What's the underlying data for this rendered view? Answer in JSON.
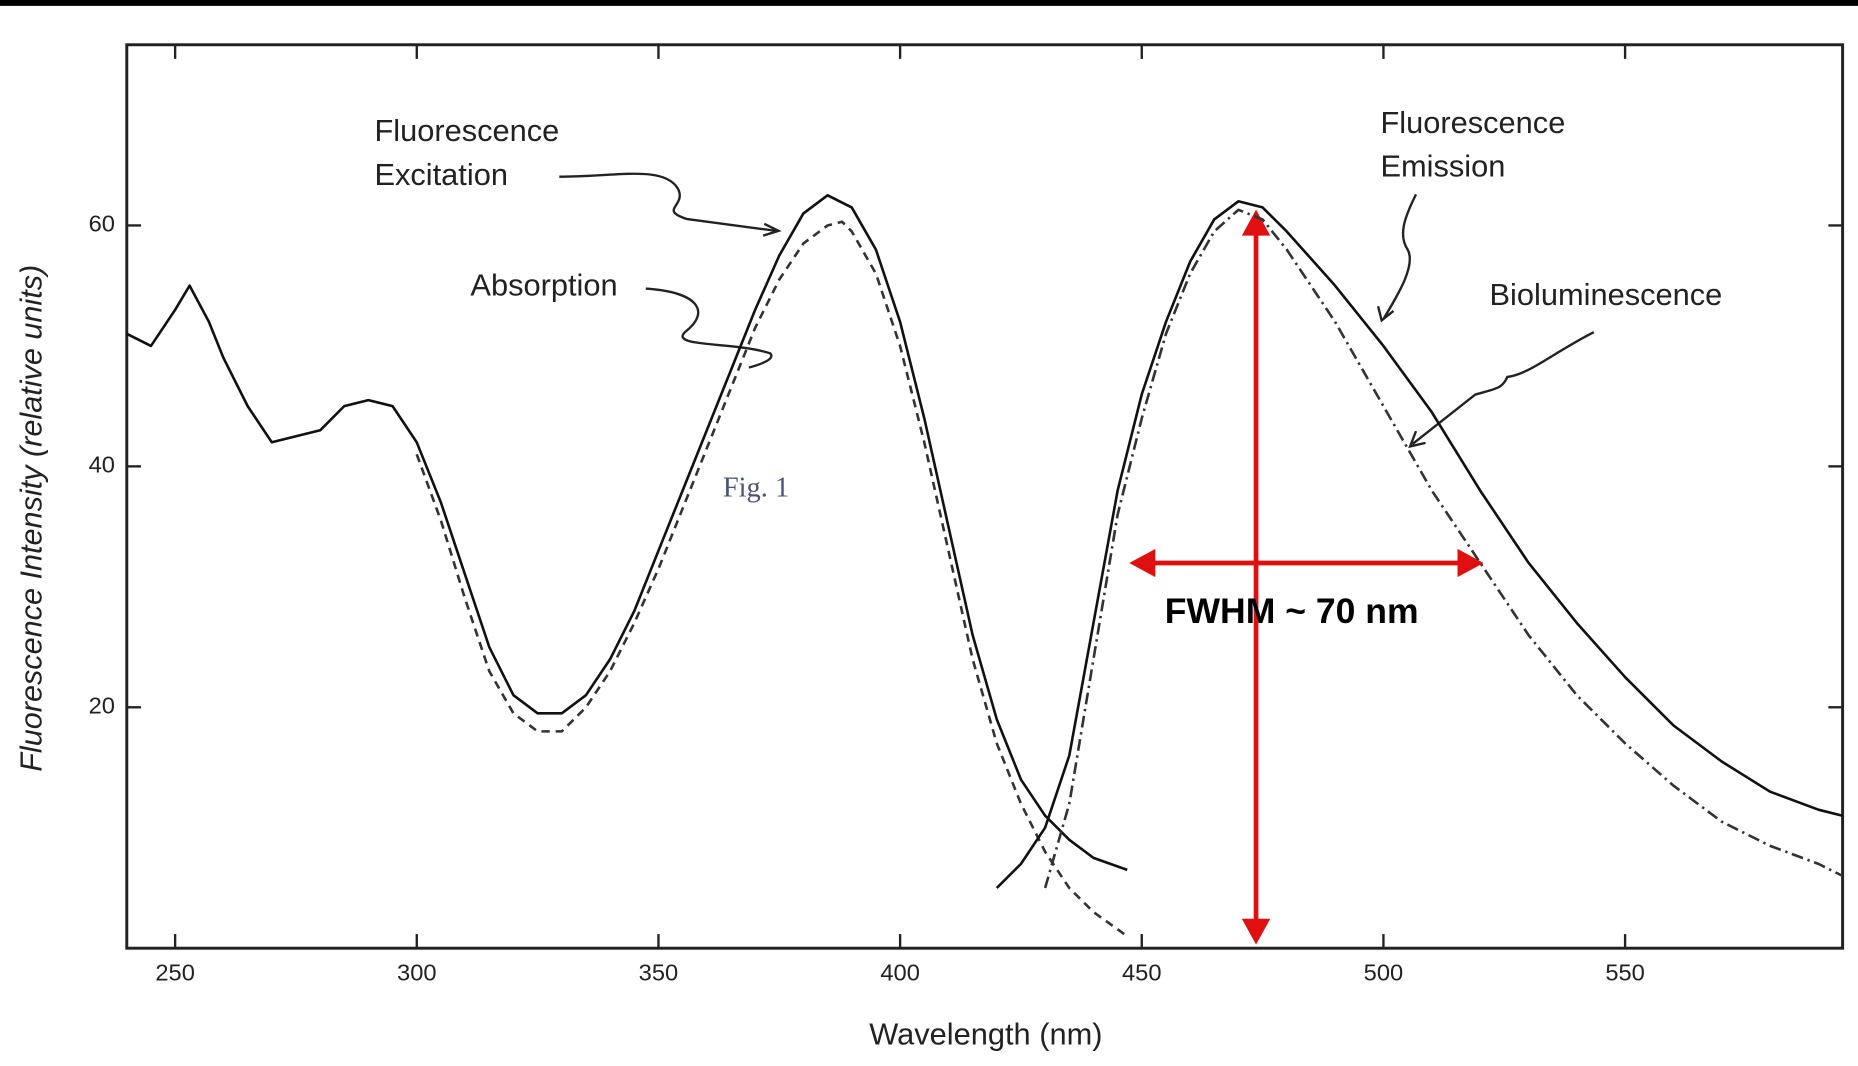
{
  "chart_data": {
    "type": "line",
    "xlabel": "Wavelength (nm)",
    "ylabel": "Fluorescence Intensity (relative units)",
    "xlim": [
      240,
      595
    ],
    "ylim": [
      0,
      75
    ],
    "xticks": [
      250,
      300,
      350,
      400,
      450,
      500,
      550
    ],
    "yticks": [
      20,
      40,
      60
    ],
    "series": [
      {
        "name": "Fluorescence Excitation",
        "color": "#111111",
        "dash": "none",
        "x": [
          240,
          245,
          250,
          253,
          257,
          260,
          265,
          270,
          275,
          280,
          285,
          290,
          295,
          300,
          305,
          310,
          315,
          320,
          325,
          330,
          335,
          340,
          345,
          350,
          355,
          360,
          365,
          370,
          375,
          380,
          385,
          390,
          395,
          400,
          405,
          410,
          415,
          420,
          425,
          430,
          435,
          440,
          447
        ],
        "values": [
          51,
          50,
          53,
          55,
          52,
          49,
          45,
          42,
          42.5,
          43,
          45,
          45.5,
          45,
          42,
          37,
          31,
          25,
          21,
          19.5,
          19.5,
          21,
          24,
          28,
          33,
          38,
          43,
          48,
          53,
          57.5,
          61,
          62.5,
          61.5,
          58,
          52,
          44,
          35,
          26,
          19,
          14,
          11,
          9,
          7.5,
          6.5
        ]
      },
      {
        "name": "Absorption",
        "color": "#333333",
        "dash": "7,5",
        "x": [
          300,
          305,
          310,
          315,
          320,
          325,
          330,
          335,
          340,
          345,
          350,
          355,
          360,
          365,
          370,
          375,
          380,
          385,
          388,
          390,
          395,
          400,
          405,
          410,
          415,
          420,
          425,
          430,
          435,
          440,
          447
        ],
        "values": [
          41,
          35.5,
          29,
          23,
          19.5,
          18,
          18,
          20,
          23,
          27,
          31.5,
          36.5,
          41.5,
          46.5,
          51.5,
          55.5,
          58.5,
          60,
          60.3,
          59.5,
          56,
          50,
          42,
          33,
          24,
          17,
          12,
          8,
          5,
          3,
          1
        ]
      },
      {
        "name": "Fluorescence Emission",
        "color": "#111111",
        "dash": "none",
        "x": [
          420,
          425,
          430,
          435,
          440,
          445,
          450,
          455,
          460,
          465,
          470,
          475,
          480,
          490,
          500,
          510,
          520,
          530,
          540,
          550,
          560,
          570,
          580,
          590,
          595
        ],
        "values": [
          5,
          7,
          10,
          16,
          27,
          38,
          46,
          52,
          57,
          60.5,
          62,
          61.5,
          59.5,
          55,
          50,
          44.5,
          38,
          32,
          27,
          22.5,
          18.5,
          15.5,
          13,
          11.5,
          11
        ]
      },
      {
        "name": "Bioluminescence",
        "color": "#333333",
        "dash": "10,4,2,4",
        "x": [
          430,
          435,
          440,
          445,
          450,
          455,
          460,
          465,
          470,
          475,
          480,
          490,
          500,
          510,
          520,
          530,
          540,
          550,
          560,
          570,
          580,
          590,
          595
        ],
        "values": [
          5,
          12,
          24,
          36,
          44,
          51,
          56,
          59.5,
          61.3,
          60.5,
          58,
          52,
          45,
          38,
          32,
          26,
          21,
          17,
          13.5,
          10.5,
          8.5,
          7,
          6
        ]
      }
    ],
    "annotations": [
      "Fluorescence",
      "Excitation",
      "Absorption",
      "Fluorescence",
      "Emission",
      "Bioluminescence",
      "Fig. 1",
      "FWHM ~ 70 nm"
    ]
  }
}
